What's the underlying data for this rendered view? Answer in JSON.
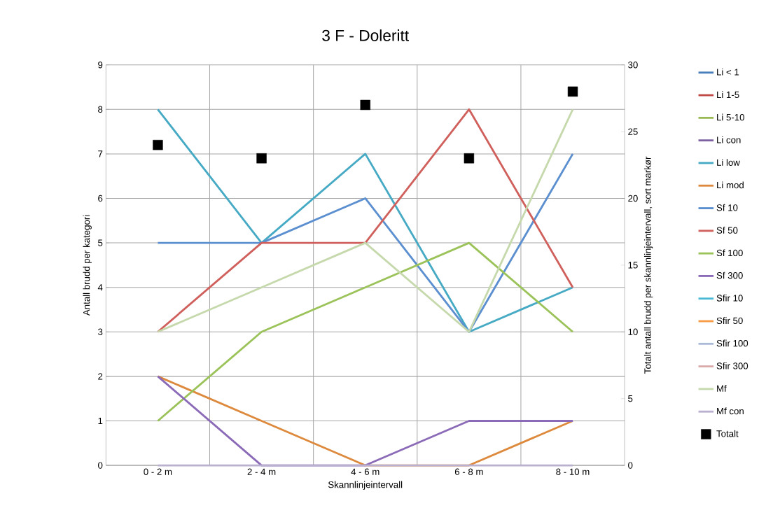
{
  "chart_data": {
    "type": "line",
    "title": "3 F - Doleritt",
    "xlabel": "Skannlinjeintervall",
    "ylabel": "Antall brudd per kategori",
    "y2label": "Totalt antall brudd per skannlinjeintervall, sort markør",
    "categories": [
      "0 - 2 m",
      "2 - 4 m",
      "4 - 6 m",
      "6 - 8 m",
      "8 - 10 m"
    ],
    "ylim": [
      0,
      9
    ],
    "yticks": [
      0,
      1,
      2,
      3,
      4,
      5,
      6,
      7,
      8,
      9
    ],
    "y2lim": [
      0,
      30
    ],
    "y2ticks": [
      0,
      5,
      10,
      15,
      20,
      25,
      30
    ],
    "grid": true,
    "legend": "right",
    "series": [
      {
        "name": "Li < 1",
        "color": "#4a7ebb",
        "values": [
          null,
          null,
          null,
          null,
          null
        ]
      },
      {
        "name": "Li 1-5",
        "color": "#be4b48",
        "values": [
          null,
          null,
          null,
          null,
          null
        ]
      },
      {
        "name": "Li 5-10",
        "color": "#98b954",
        "values": [
          null,
          null,
          null,
          null,
          null
        ]
      },
      {
        "name": "Li con",
        "color": "#7d60a0",
        "values": [
          null,
          null,
          null,
          null,
          null
        ]
      },
      {
        "name": "Li low",
        "color": "#46aac5",
        "values": [
          8,
          5,
          7,
          3,
          4
        ]
      },
      {
        "name": "Li mod",
        "color": "#dd8a3e",
        "values": [
          2,
          1,
          0,
          0,
          1
        ]
      },
      {
        "name": "Sf 10",
        "color": "#5b8fd0",
        "values": [
          5,
          5,
          6,
          3,
          7
        ]
      },
      {
        "name": "Sf 50",
        "color": "#d0605c",
        "values": [
          3,
          5,
          5,
          8,
          4
        ]
      },
      {
        "name": "Sf 100",
        "color": "#9bc35a",
        "values": [
          1,
          3,
          4,
          5,
          3
        ]
      },
      {
        "name": "Sf 300",
        "color": "#8b6bb8",
        "values": [
          2,
          0,
          0,
          1,
          1
        ]
      },
      {
        "name": "Sfir 10",
        "color": "#4bbad6",
        "values": [
          null,
          null,
          null,
          null,
          null
        ]
      },
      {
        "name": "Sfir 50",
        "color": "#f79b46",
        "values": [
          null,
          null,
          null,
          null,
          null
        ]
      },
      {
        "name": "Sfir 100",
        "color": "#aabad7",
        "values": [
          null,
          null,
          null,
          null,
          null
        ]
      },
      {
        "name": "Sfir 300",
        "color": "#d9aaa9",
        "values": [
          null,
          null,
          null,
          null,
          null
        ]
      },
      {
        "name": "Mf",
        "color": "#c6d9ac",
        "values": [
          3,
          4,
          5,
          3,
          8
        ]
      },
      {
        "name": "Mf con",
        "color": "#bab0cf",
        "values": [
          0,
          0,
          0,
          0,
          0
        ]
      },
      {
        "name": "Totalt",
        "type": "scatter",
        "marker": "square",
        "axis": "y2",
        "color": "#000000",
        "values": [
          24,
          23,
          27,
          23,
          28
        ]
      }
    ]
  }
}
